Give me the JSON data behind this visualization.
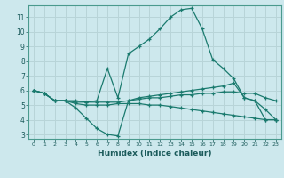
{
  "xlabel": "Humidex (Indice chaleur)",
  "bg_color": "#cde8ed",
  "grid_color": "#b8d4d8",
  "line_color": "#1a7a6e",
  "xlim": [
    -0.5,
    23.5
  ],
  "ylim": [
    2.7,
    11.8
  ],
  "xticks": [
    0,
    1,
    2,
    3,
    4,
    5,
    6,
    7,
    8,
    9,
    10,
    11,
    12,
    13,
    14,
    15,
    16,
    17,
    18,
    19,
    20,
    21,
    22,
    23
  ],
  "yticks": [
    3,
    4,
    5,
    6,
    7,
    8,
    9,
    10,
    11
  ],
  "lines": [
    {
      "x": [
        0,
        1,
        2,
        3,
        4,
        5,
        6,
        7,
        8,
        9,
        10,
        11,
        12,
        13,
        14,
        15,
        16,
        17,
        18,
        19,
        20,
        21,
        22,
        23
      ],
      "y": [
        6.0,
        5.8,
        5.3,
        5.3,
        5.3,
        5.2,
        5.3,
        7.5,
        5.5,
        8.5,
        9.0,
        9.5,
        10.2,
        11.0,
        11.5,
        11.6,
        10.2,
        8.1,
        7.5,
        6.8,
        5.5,
        5.3,
        4.0,
        4.0
      ]
    },
    {
      "x": [
        0,
        1,
        2,
        3,
        4,
        5,
        6,
        7,
        8,
        9,
        10,
        11,
        12,
        13,
        14,
        15,
        16,
        17,
        18,
        19,
        20,
        21,
        22,
        23
      ],
      "y": [
        6.0,
        5.8,
        5.3,
        5.3,
        4.8,
        4.1,
        3.4,
        3.0,
        2.9,
        5.3,
        5.5,
        5.6,
        5.7,
        5.8,
        5.9,
        6.0,
        6.1,
        6.2,
        6.3,
        6.5,
        5.5,
        5.3,
        4.7,
        4.0
      ]
    },
    {
      "x": [
        0,
        1,
        2,
        3,
        4,
        5,
        6,
        7,
        8,
        9,
        10,
        11,
        12,
        13,
        14,
        15,
        16,
        17,
        18,
        19,
        20,
        21,
        22,
        23
      ],
      "y": [
        6.0,
        5.8,
        5.3,
        5.3,
        5.2,
        5.2,
        5.2,
        5.2,
        5.2,
        5.3,
        5.4,
        5.5,
        5.5,
        5.6,
        5.7,
        5.7,
        5.8,
        5.8,
        5.9,
        5.9,
        5.8,
        5.8,
        5.5,
        5.3
      ]
    },
    {
      "x": [
        0,
        1,
        2,
        3,
        4,
        5,
        6,
        7,
        8,
        9,
        10,
        11,
        12,
        13,
        14,
        15,
        16,
        17,
        18,
        19,
        20,
        21,
        22,
        23
      ],
      "y": [
        6.0,
        5.8,
        5.3,
        5.3,
        5.1,
        5.0,
        5.0,
        5.0,
        5.1,
        5.1,
        5.1,
        5.0,
        5.0,
        4.9,
        4.8,
        4.7,
        4.6,
        4.5,
        4.4,
        4.3,
        4.2,
        4.1,
        4.0,
        4.0
      ]
    }
  ]
}
